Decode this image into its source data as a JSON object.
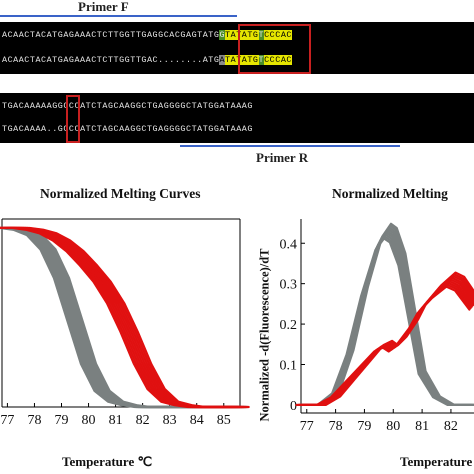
{
  "panel_a": {
    "primer_f_label": "Primer F",
    "primer_r_label": "Primer R",
    "row1_top": {
      "pre": "ACAACTACATGAGAAACTCTTGGTTGAG",
      "box": "GCACGAGT",
      "mid": "ATG",
      "h1": "G",
      "a1": "TATATG",
      "h2": "T",
      "a2": "CCCAC"
    },
    "row1_bottom": {
      "pre": "ACAACTACATGAGAAACTCTTGGTTGAC",
      "box": "........",
      "mid": "ATG",
      "h1": "A",
      "a1": "TATATG",
      "h2": "T",
      "a2": "CCCAC"
    },
    "row2_top": {
      "pre": "TGACAAAAA",
      "box": "G",
      "post": "GCCCATCTAGCAAGGCTGAGGGGCTATGGATAAAG"
    },
    "row2_bottom": {
      "pre": "TGACAAAA",
      "box": ".",
      "post": ".GCCCATCTAGCAAGGCTGAGGGGCTATGGATAAAG"
    }
  },
  "chart_data": [
    {
      "type": "line",
      "title": "Normalized Melting Curves",
      "xlabel": "Temperature ℃",
      "ylabel": "",
      "xlim": [
        76.8,
        85.6
      ],
      "ylim": [
        0,
        1.05
      ],
      "x_ticks": [
        "77",
        "78",
        "79",
        "80",
        "81",
        "82",
        "83",
        "84",
        "85"
      ],
      "series": [
        {
          "color": "#7a8080",
          "x": [
            76.8,
            77,
            77.5,
            78,
            78.5,
            79,
            79.5,
            80,
            80.5,
            81,
            81.5,
            82,
            83,
            84,
            85,
            85.6
          ],
          "y": [
            1.0,
            1.0,
            0.99,
            0.96,
            0.88,
            0.72,
            0.48,
            0.24,
            0.09,
            0.03,
            0.01,
            0.0,
            0.0,
            0.0,
            0.0,
            0.0
          ]
        },
        {
          "color": "#e01010",
          "x": [
            76.8,
            77,
            77.5,
            78,
            78.5,
            79,
            79.5,
            80,
            80.5,
            81,
            81.5,
            82,
            82.5,
            83,
            83.5,
            84,
            85,
            85.6
          ],
          "y": [
            1.0,
            1.0,
            1.0,
            0.99,
            0.97,
            0.93,
            0.87,
            0.79,
            0.7,
            0.58,
            0.42,
            0.24,
            0.1,
            0.03,
            0.01,
            0.0,
            0.0,
            0.0
          ]
        }
      ]
    },
    {
      "type": "line",
      "title": "Normalized Melting",
      "xlabel": "Temperature",
      "ylabel": "Normalized -d(Fluorescence)/dT",
      "xlim": [
        76.8,
        82.8
      ],
      "ylim": [
        -0.02,
        0.46
      ],
      "x_ticks": [
        "77",
        "78",
        "79",
        "80",
        "81",
        "82"
      ],
      "y_ticks": [
        "0",
        "0.1",
        "0.2",
        "0.3",
        "0.4"
      ],
      "series": [
        {
          "color": "#7a8080",
          "x": [
            76.8,
            77.5,
            78,
            78.5,
            79,
            79.5,
            79.8,
            80,
            80.3,
            80.7,
            81,
            81.5,
            82,
            82.8
          ],
          "y": [
            0.0,
            0.0,
            0.03,
            0.13,
            0.28,
            0.4,
            0.43,
            0.42,
            0.36,
            0.2,
            0.08,
            0.02,
            0.0,
            0.0
          ]
        },
        {
          "color": "#e01010",
          "x": [
            76.8,
            77.5,
            78,
            78.5,
            79,
            79.5,
            79.8,
            80,
            80.3,
            80.7,
            81,
            81.5,
            82,
            82.3,
            82.8
          ],
          "y": [
            0.0,
            0.0,
            0.02,
            0.06,
            0.1,
            0.14,
            0.15,
            0.14,
            0.16,
            0.2,
            0.24,
            0.28,
            0.31,
            0.3,
            0.25
          ]
        }
      ]
    }
  ]
}
